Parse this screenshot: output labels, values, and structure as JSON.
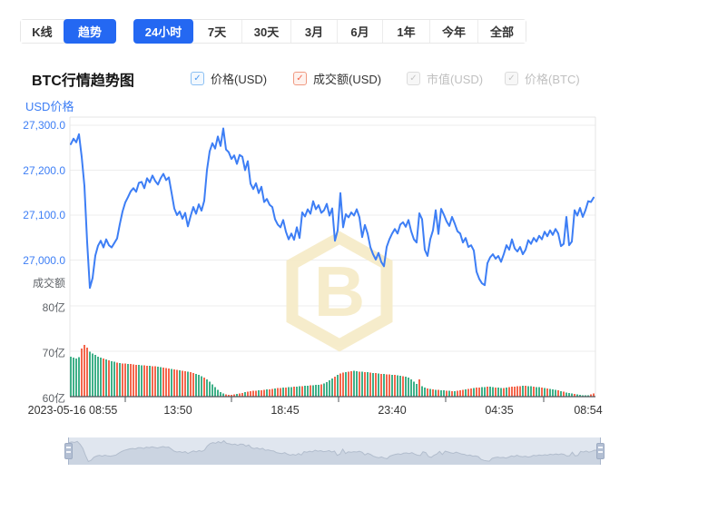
{
  "toolbar": {
    "chart_type_tabs": [
      {
        "label": "K线",
        "active": false
      },
      {
        "label": "趋势",
        "active": true
      }
    ],
    "range_tabs": [
      {
        "label": "24小时",
        "active": true
      },
      {
        "label": "7天",
        "active": false
      },
      {
        "label": "30天",
        "active": false
      },
      {
        "label": "3月",
        "active": false
      },
      {
        "label": "6月",
        "active": false
      },
      {
        "label": "1年",
        "active": false
      },
      {
        "label": "今年",
        "active": false
      },
      {
        "label": "全部",
        "active": false
      }
    ],
    "accent_color": "#2468f2"
  },
  "header": {
    "title": "BTC行情趋势图",
    "legend": [
      {
        "label": "价格(USD)",
        "checked": true,
        "style": "blue",
        "color": "#3d7ef5"
      },
      {
        "label": "成交额(USD)",
        "checked": true,
        "style": "red",
        "color": "#f4664c"
      },
      {
        "label": "市值(USD)",
        "checked": true,
        "style": "gray",
        "color": "#c4c4c4"
      },
      {
        "label": "价格(BTC)",
        "checked": true,
        "style": "gray",
        "color": "#c4c4c4"
      }
    ]
  },
  "watermark": {
    "name": "btc-hexagon-logo",
    "ring_color": "#f6ebc6",
    "glyph_color": "#f6ebc6"
  },
  "chart_data": {
    "type": "line+bar",
    "title": "BTC行情趋势图",
    "legend_position": "top",
    "grid": true,
    "price_axis": {
      "label": "USD价格",
      "tick_labels": [
        "27,300.0",
        "27,200.0",
        "27,100.0",
        "27,000.0"
      ],
      "tick_values": [
        27300,
        27200,
        27100,
        27000
      ],
      "approx_range": [
        26930,
        27300
      ]
    },
    "volume_axis": {
      "label": "成交额",
      "tick_labels": [
        "80亿",
        "70亿",
        "60亿"
      ],
      "tick_values": [
        80,
        70,
        60
      ],
      "unit": "亿"
    },
    "x_axis": {
      "labels": [
        "2023-05-16 08:55",
        "13:50",
        "18:45",
        "23:40",
        "04:35",
        "08:54"
      ],
      "span_minutes": 1439
    },
    "series": [
      {
        "name": "价格(USD)",
        "type": "line",
        "color": "#3d7ef5",
        "values": [
          27258,
          27270,
          27262,
          27280,
          27230,
          27165,
          27040,
          26938,
          26960,
          27010,
          27032,
          27043,
          27028,
          27046,
          27033,
          27028,
          27038,
          27048,
          27080,
          27108,
          27128,
          27140,
          27153,
          27160,
          27152,
          27172,
          27174,
          27160,
          27182,
          27173,
          27188,
          27176,
          27168,
          27182,
          27192,
          27178,
          27184,
          27150,
          27115,
          27100,
          27108,
          27092,
          27105,
          27075,
          27098,
          27118,
          27103,
          27124,
          27110,
          27132,
          27200,
          27242,
          27260,
          27248,
          27275,
          27254,
          27293,
          27246,
          27240,
          27225,
          27233,
          27214,
          27234,
          27230,
          27200,
          27220,
          27170,
          27158,
          27171,
          27149,
          27163,
          27129,
          27136,
          27123,
          27118,
          27091,
          27079,
          27073,
          27089,
          27063,
          27046,
          27059,
          27045,
          27073,
          27049,
          27106,
          27097,
          27113,
          27103,
          27131,
          27113,
          27122,
          27105,
          27111,
          27125,
          27099,
          27115,
          27043,
          27066,
          27149,
          27073,
          27102,
          27095,
          27106,
          27099,
          27113,
          27095,
          27051,
          27078,
          27059,
          27029,
          27013,
          27001,
          27016,
          26996,
          26986,
          27029,
          27046,
          27059,
          27069,
          27059,
          27079,
          27084,
          27074,
          27089,
          27064,
          27046,
          27039,
          27104,
          27091,
          27023,
          27009,
          27046,
          27066,
          27111,
          27058,
          27114,
          27101,
          27086,
          27076,
          27096,
          27081,
          27064,
          27059,
          27039,
          27049,
          27029,
          27033,
          27021,
          26974,
          26958,
          26948,
          26944,
          26993,
          27006,
          27013,
          27003,
          27009,
          26996,
          27013,
          27033,
          27023,
          27046,
          27026,
          27019,
          27029,
          27013,
          27023,
          27044,
          27036,
          27049,
          27041,
          27054,
          27046,
          27063,
          27053,
          27066,
          27056,
          27069,
          27059,
          27031,
          27036,
          27096,
          27033,
          27041,
          27111,
          27099,
          27116,
          27096,
          27111,
          27131,
          27129,
          27139
        ]
      },
      {
        "name": "成交额(USD)",
        "type": "bar",
        "up_color": "#3fb088",
        "down_color": "#f4664c",
        "unit": "亿",
        "values": [
          68.8,
          68.6,
          68.4,
          68.7,
          70.6,
          71.4,
          70.8,
          69.9,
          69.5,
          69.2,
          68.8,
          68.6,
          68.4,
          68.2,
          68.0,
          67.8,
          67.7,
          67.5,
          67.4,
          67.3,
          67.3,
          67.2,
          67.2,
          67.1,
          67.0,
          67.0,
          66.9,
          66.9,
          66.8,
          66.8,
          66.7,
          66.7,
          66.6,
          66.5,
          66.4,
          66.3,
          66.2,
          66.1,
          66.0,
          65.9,
          65.8,
          65.7,
          65.6,
          65.5,
          65.4,
          65.2,
          65.0,
          64.8,
          64.5,
          64.2,
          63.8,
          63.3,
          62.7,
          62.1,
          61.5,
          61.0,
          60.7,
          60.5,
          60.4,
          60.4,
          60.5,
          60.6,
          60.7,
          60.8,
          61.0,
          61.1,
          61.2,
          61.3,
          61.3,
          61.4,
          61.4,
          61.5,
          61.6,
          61.6,
          61.7,
          61.8,
          61.9,
          61.9,
          62.0,
          62.0,
          62.1,
          62.1,
          62.2,
          62.2,
          62.3,
          62.3,
          62.4,
          62.4,
          62.5,
          62.5,
          62.6,
          62.6,
          62.7,
          62.9,
          63.2,
          63.6,
          64.0,
          64.4,
          64.8,
          65.1,
          65.3,
          65.4,
          65.5,
          65.6,
          65.7,
          65.6,
          65.5,
          65.5,
          65.4,
          65.4,
          65.3,
          65.2,
          65.2,
          65.1,
          65.0,
          65.0,
          64.9,
          64.9,
          64.8,
          64.8,
          64.7,
          64.6,
          64.5,
          64.4,
          64.2,
          63.8,
          63.3,
          62.8,
          63.8,
          62.3,
          62.0,
          61.8,
          61.7,
          61.6,
          61.5,
          61.5,
          61.4,
          61.4,
          61.3,
          61.3,
          61.2,
          61.2,
          61.3,
          61.4,
          61.5,
          61.6,
          61.7,
          61.8,
          61.9,
          62.0,
          62.0,
          62.1,
          62.1,
          62.2,
          62.2,
          62.1,
          62.0,
          62.0,
          61.9,
          61.9,
          62.0,
          62.1,
          62.2,
          62.2,
          62.3,
          62.3,
          62.4,
          62.4,
          62.3,
          62.3,
          62.2,
          62.1,
          62.1,
          62.0,
          61.9,
          61.8,
          61.7,
          61.6,
          61.5,
          61.4,
          61.2,
          61.1,
          60.9,
          60.8,
          60.7,
          60.6,
          60.5,
          60.4,
          60.3,
          60.3,
          60.3,
          60.5,
          60.7
        ],
        "directions": [
          "gggg",
          "rrr",
          "ggg",
          "ggrg",
          "rggr",
          "grrgr",
          "rrggr",
          "rgrrg",
          "grrrg",
          "rrgrr",
          "grrg",
          "ggrg",
          "gggg",
          "ggrr",
          "rrgr",
          "rgrr",
          "rrgr",
          "rgrrg",
          "rrgrg",
          "grggr",
          "ggrgg",
          "grggg",
          "grgr",
          "rgrrg",
          "grgrg",
          "rgrgr",
          "grrgr",
          "ggrgg",
          "gggr",
          "ggrg",
          "rgrgg",
          "rgrgr",
          "rrgrr",
          "grrgg",
          "rggrg",
          "grgrr",
          "rrrgr",
          "ggrgg",
          "rgrgg",
          "grgrg",
          "ggrgg",
          "ggg",
          "rr"
        ]
      }
    ]
  },
  "navigator": {
    "type": "range-slider",
    "full_range_selected": true
  }
}
